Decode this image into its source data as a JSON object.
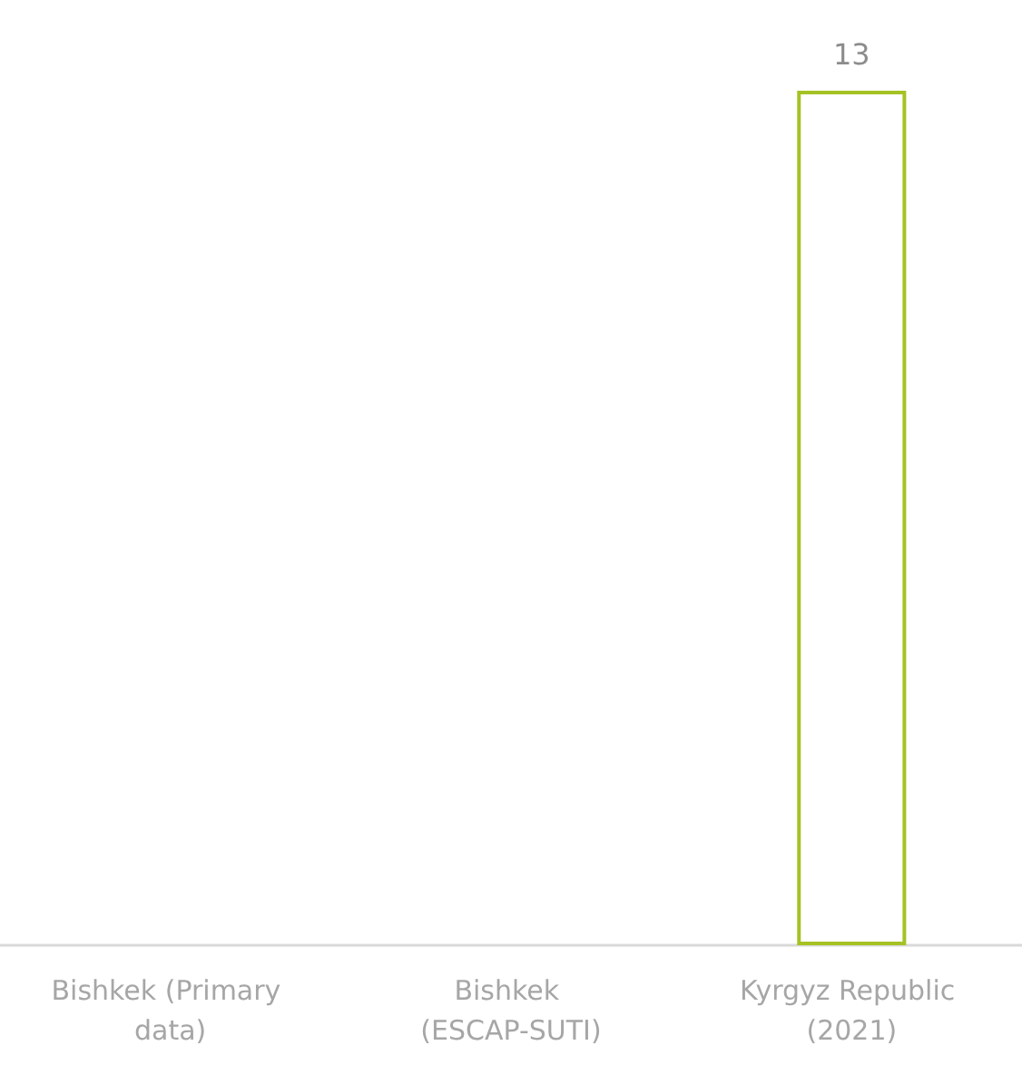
{
  "chart_data": {
    "type": "bar",
    "categories": [
      "Bishkek (Primary data)",
      "Bishkek (ESCAP-SUTI)",
      "Kyrgyz Republic (2021)"
    ],
    "values": [
      null,
      null,
      13
    ],
    "color": "#a5c224",
    "data_labels": true
  }
}
